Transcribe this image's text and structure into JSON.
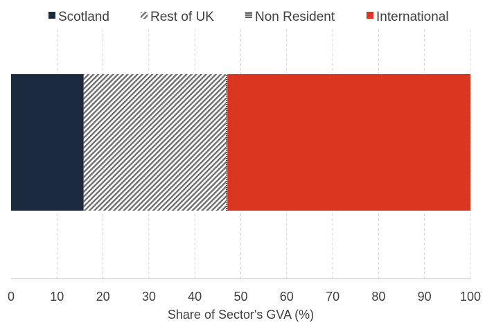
{
  "chart_data": {
    "type": "bar",
    "orientation": "horizontal",
    "stacked": true,
    "categories": [
      ""
    ],
    "series": [
      {
        "name": "Scotland",
        "values": [
          15.8
        ],
        "color": "#1c2a3f",
        "pattern": "solid"
      },
      {
        "name": "Rest of UK",
        "values": [
          31.0
        ],
        "color": "#6e6e6e",
        "pattern": "diagonal-hatch"
      },
      {
        "name": "Non Resident",
        "values": [
          0.3
        ],
        "color": "#1a1a1a",
        "pattern": "horizontal-lines"
      },
      {
        "name": "International",
        "values": [
          52.9
        ],
        "color": "#db3620",
        "pattern": "solid"
      }
    ],
    "xlabel": "Share of Sector's GVA (%)",
    "ylabel": "",
    "xlim": [
      0,
      100
    ],
    "xticks": [
      "0",
      "10",
      "20",
      "30",
      "40",
      "50",
      "60",
      "70",
      "80",
      "90",
      "100"
    ],
    "grid": "vertical-dashed",
    "legend_position": "top"
  }
}
